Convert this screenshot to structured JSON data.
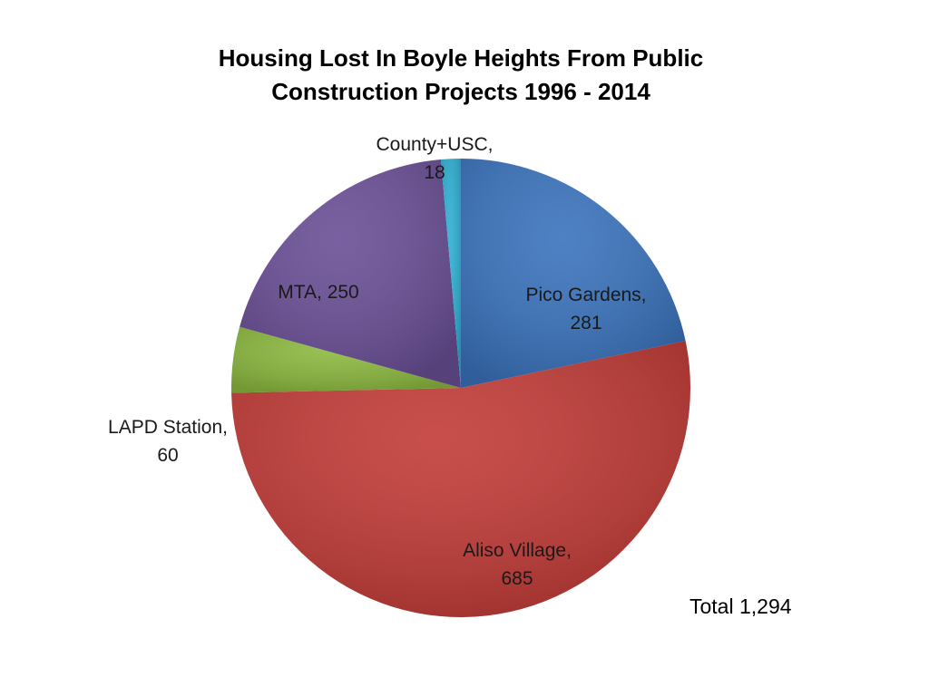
{
  "chart_data": {
    "type": "pie",
    "title_lines": [
      "Housing Lost In Boyle Heights From Public",
      "Construction Projects 1996 - 2014"
    ],
    "slices": [
      {
        "label": "Pico Gardens",
        "value": 281,
        "color": "#3a73bd"
      },
      {
        "label": "Aliso Village",
        "value": 685,
        "color": "#c23b37"
      },
      {
        "label": "LAPD Station",
        "value": 60,
        "color": "#8cb93f"
      },
      {
        "label": "MTA",
        "value": 250,
        "color": "#6a4f96"
      },
      {
        "label": "County+USC",
        "value": 18,
        "color": "#2eafd3"
      }
    ],
    "label_text": [
      [
        "Pico Gardens,",
        "281"
      ],
      [
        "Aliso Village,",
        "685"
      ],
      [
        "LAPD Station,",
        "60"
      ],
      [
        "MTA, 250"
      ],
      [
        "County+USC,",
        "18"
      ]
    ],
    "annotation": "Total 1,294"
  }
}
